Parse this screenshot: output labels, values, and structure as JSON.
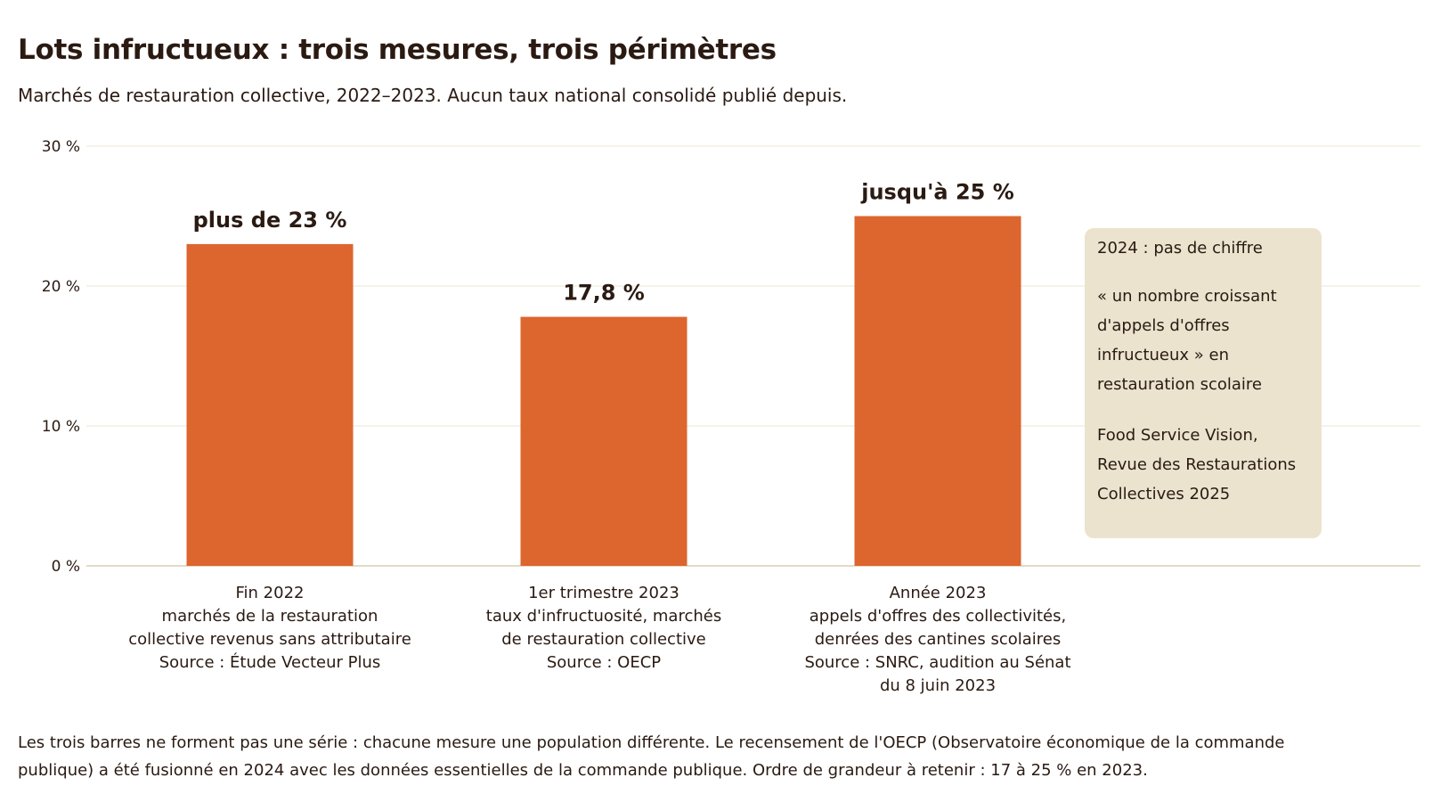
{
  "title": "Lots infructueux : trois mesures, trois périmètres",
  "subtitle": "Marchés de restauration collective, 2022–2023. Aucun taux national consolidé publié depuis.",
  "chart_data": {
    "type": "bar",
    "ylim": [
      0,
      30
    ],
    "yticks": [
      0,
      10,
      20,
      30
    ],
    "ytick_labels": [
      "0 %",
      "10 %",
      "20 %",
      "30 %"
    ],
    "grid": true,
    "bar_color": "#dd652e",
    "categories": [
      [
        "Fin 2022",
        "marchés de la restauration",
        "collective revenus sans attributaire",
        "Source : Étude Vecteur Plus"
      ],
      [
        "1er trimestre 2023",
        "taux d'infructuosité, marchés",
        "de restauration collective",
        "Source : OECP"
      ],
      [
        "Année 2023",
        "appels d'offres des collectivités,",
        "denrées des cantines scolaires",
        "Source : SNRC, audition au Sénat",
        "du 8 juin 2023"
      ]
    ],
    "values": [
      23,
      17.8,
      25
    ],
    "value_labels": [
      "plus de 23 %",
      "17,8 %",
      "jusqu'à 25 %"
    ]
  },
  "note": {
    "heading": "2024 : pas de chiffre",
    "quote": "« un nombre croissant d'appels d'offres infructueux » en restauration scolaire",
    "source": "Food Service Vision, Revue des Restaurations Collectives 2025",
    "background": "#ebe3ce"
  },
  "footnote": "Les trois barres ne forment pas une série : chacune mesure une population différente. Le recensement de l'OECP (Observatoire économique de la commande publique) a été fusionné en 2024 avec les données essentielles de la commande publique. Ordre de grandeur à retenir : 17 à 25 % en 2023."
}
